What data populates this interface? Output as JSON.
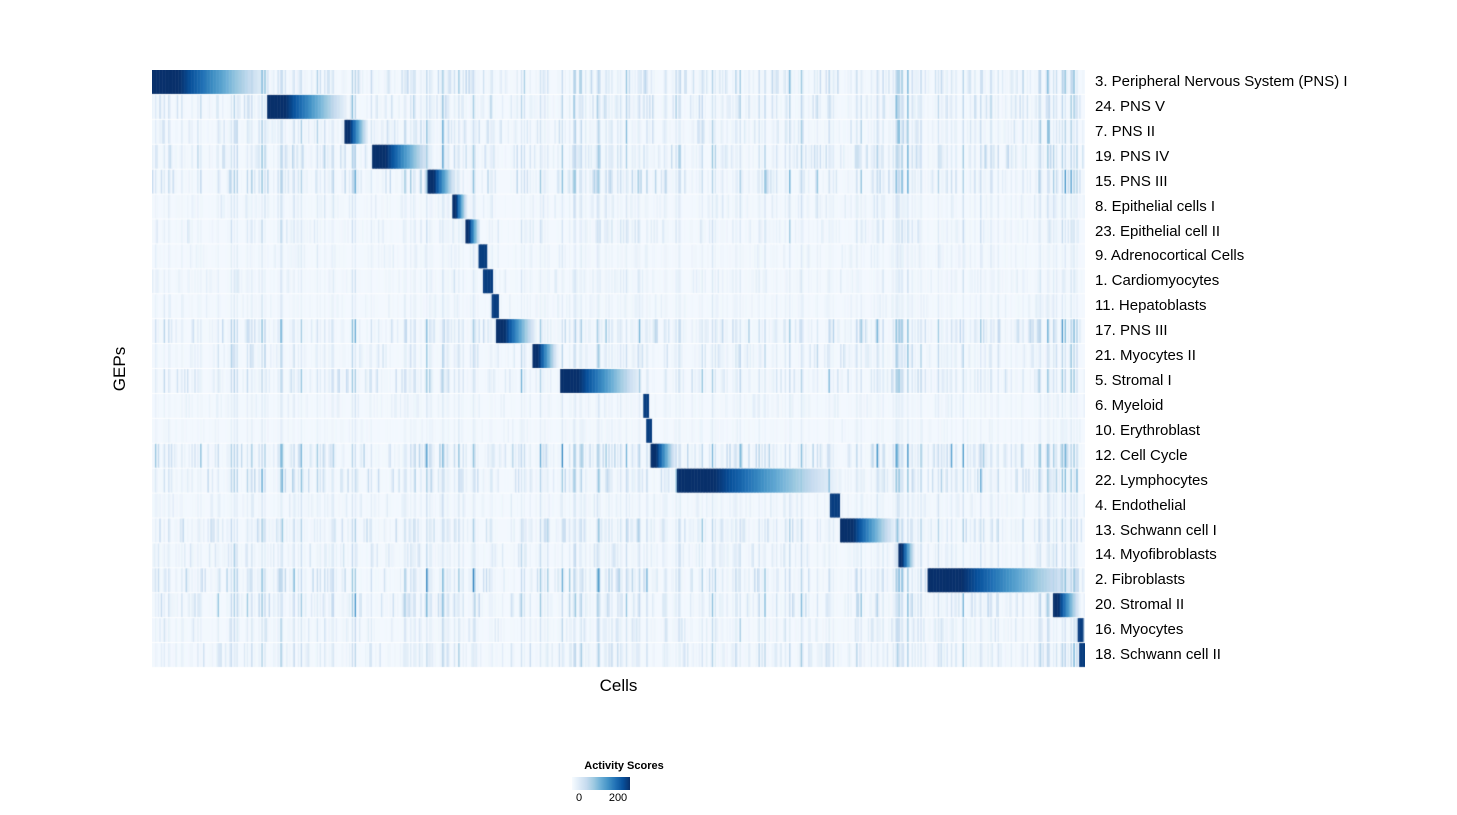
{
  "chart_data": {
    "type": "heatmap",
    "title": "",
    "xlabel": "Cells",
    "ylabel": "GEPs",
    "x_tick_labels_shown": false,
    "background_value": 0,
    "rows": [
      {
        "label": "3. Peripheral Nervous System (PNS) I",
        "block_start": 0.0,
        "block_end": 0.125,
        "noise": 0.5
      },
      {
        "label": "24. PNS V",
        "block_start": 0.123,
        "block_end": 0.21,
        "noise": 0.45
      },
      {
        "label": "7. PNS II",
        "block_start": 0.206,
        "block_end": 0.232,
        "noise": 0.4
      },
      {
        "label": "19. PNS IV",
        "block_start": 0.236,
        "block_end": 0.3,
        "noise": 0.5
      },
      {
        "label": "15. PNS III",
        "block_start": 0.295,
        "block_end": 0.326,
        "noise": 0.55
      },
      {
        "label": "8. Epithelial cells I",
        "block_start": 0.322,
        "block_end": 0.338,
        "noise": 0.22
      },
      {
        "label": "23. Epithelial cell II",
        "block_start": 0.336,
        "block_end": 0.352,
        "noise": 0.25
      },
      {
        "label": "9. Adrenocortical Cells",
        "block_start": 0.35,
        "block_end": 0.36,
        "noise": 0.15
      },
      {
        "label": "1. Cardiomyocytes",
        "block_start": 0.355,
        "block_end": 0.366,
        "noise": 0.2
      },
      {
        "label": "11. Hepatoblasts",
        "block_start": 0.364,
        "block_end": 0.372,
        "noise": 0.15
      },
      {
        "label": "17. PNS III",
        "block_start": 0.368,
        "block_end": 0.412,
        "noise": 0.5
      },
      {
        "label": "21. Myocytes II",
        "block_start": 0.408,
        "block_end": 0.435,
        "noise": 0.35
      },
      {
        "label": "5. Stromal I",
        "block_start": 0.437,
        "block_end": 0.525,
        "noise": 0.45
      },
      {
        "label": "6. Myeloid",
        "block_start": 0.527,
        "block_end": 0.533,
        "noise": 0.15
      },
      {
        "label": "10. Erythroblast",
        "block_start": 0.53,
        "block_end": 0.536,
        "noise": 0.12
      },
      {
        "label": "12. Cell Cycle",
        "block_start": 0.534,
        "block_end": 0.562,
        "noise": 0.6
      },
      {
        "label": "22. Lymphocytes",
        "block_start": 0.563,
        "block_end": 0.735,
        "noise": 0.5
      },
      {
        "label": "4. Endothelial",
        "block_start": 0.727,
        "block_end": 0.737,
        "noise": 0.2
      },
      {
        "label": "13. Schwann cell I",
        "block_start": 0.738,
        "block_end": 0.797,
        "noise": 0.45
      },
      {
        "label": "14. Myofibroblasts",
        "block_start": 0.8,
        "block_end": 0.818,
        "noise": 0.3
      },
      {
        "label": "2. Fibroblasts",
        "block_start": 0.831,
        "block_end": 0.992,
        "noise": 0.55
      },
      {
        "label": "20. Stromal II",
        "block_start": 0.965,
        "block_end": 0.995,
        "noise": 0.5
      },
      {
        "label": "16. Myocytes",
        "block_start": 0.992,
        "block_end": 0.998,
        "noise": 0.3
      },
      {
        "label": "18. Schwann cell II",
        "block_start": 0.994,
        "block_end": 1.0,
        "noise": 0.35
      }
    ],
    "colorbar": {
      "title": "Activity Scores",
      "ticks": [
        "0",
        "200"
      ],
      "min": 0,
      "max": 250,
      "colors": [
        "#f7fbff",
        "#deebf7",
        "#c6dbef",
        "#9ecae1",
        "#6baed6",
        "#4292c6",
        "#2171b5",
        "#08519c",
        "#08306b"
      ]
    },
    "colors": {
      "low": "#f7fbff",
      "high": "#08306b",
      "text": "#000000",
      "page_background": "#ffffff"
    }
  }
}
